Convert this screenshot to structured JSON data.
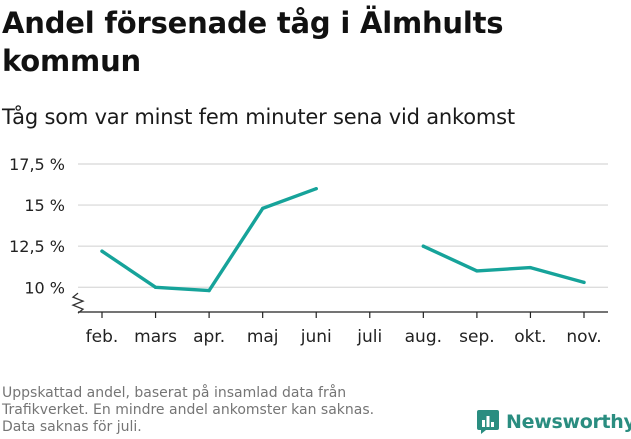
{
  "title": "Andel försenade tåg i Älmhults kommun",
  "subtitle": "Tåg som var minst fem minuter sena vid ankomst",
  "note_lines": [
    "Uppskattad andel, baserat på insamlad data från",
    "Trafikverket. En mindre andel ankomster kan saknas.",
    "Data saknas för juli."
  ],
  "brand": {
    "name": "Newsworthy",
    "icon": "bar-chart-logo-icon"
  },
  "colors": {
    "line": "#16a39a",
    "grid": "#dddddd",
    "axis": "#222222",
    "brand": "#2a8d80"
  },
  "chart_data": {
    "type": "line",
    "title": "Andel försenade tåg i Älmhults kommun",
    "xlabel": "",
    "ylabel": "",
    "categories": [
      "feb.",
      "mars",
      "apr.",
      "maj",
      "juni",
      "juli",
      "aug.",
      "sep.",
      "okt.",
      "nov."
    ],
    "series": [
      {
        "name": "Andel försenade tåg",
        "values": [
          12.2,
          10.0,
          9.8,
          14.8,
          16.0,
          null,
          12.5,
          11.0,
          11.2,
          10.3
        ]
      }
    ],
    "yticks": [
      10,
      12.5,
      15,
      17.5
    ],
    "ytick_labels": [
      "10 %",
      "12,5 %",
      "15 %",
      "17,5 %"
    ],
    "ylim": [
      8.5,
      17.5
    ],
    "axis_break": true,
    "grid": true
  }
}
